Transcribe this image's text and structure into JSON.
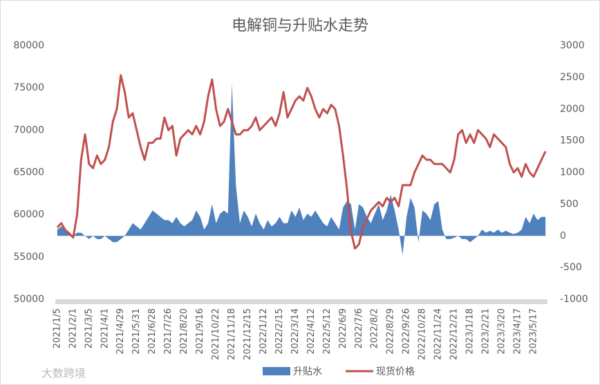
{
  "chart_data": {
    "type": "line",
    "title": "电解铜与升贴水走势",
    "watermark": "大数跨境",
    "categories": [
      "2021/1/5",
      null,
      null,
      null,
      "2021/2/1",
      null,
      null,
      null,
      "2021/3/5",
      null,
      null,
      null,
      "2021/4/1",
      null,
      null,
      null,
      "2021/4/29",
      null,
      null,
      null,
      "2021/5/31",
      null,
      null,
      null,
      "2021/6/28",
      null,
      null,
      null,
      "2021/7/26",
      null,
      null,
      null,
      "2021/8/20",
      null,
      null,
      null,
      "2021/9/16",
      null,
      null,
      null,
      "2021/10/22",
      null,
      null,
      null,
      "2021/11/18",
      null,
      null,
      null,
      "2021/12/15",
      null,
      null,
      null,
      "2022/1/12",
      null,
      null,
      null,
      "2022/2/15",
      null,
      null,
      null,
      "2022/3/14",
      null,
      null,
      null,
      "2022/4/12",
      null,
      null,
      null,
      "2022/5/12",
      null,
      null,
      null,
      "2022/6/9",
      null,
      null,
      null,
      "2022/7/6",
      null,
      null,
      null,
      "2022/8/2",
      null,
      null,
      null,
      "2022/8/29",
      null,
      null,
      null,
      "2022/9/26",
      null,
      null,
      null,
      "2022/10/28",
      null,
      null,
      null,
      "2022/11/24",
      null,
      null,
      null,
      "2022/12/21",
      null,
      null,
      null,
      "2023/1/18",
      null,
      null,
      null,
      "2023/2/21",
      null,
      null,
      null,
      "2023/3/20",
      null,
      null,
      null,
      "2023/4/17",
      null,
      null,
      null,
      "2023/5/17",
      null,
      null,
      null
    ],
    "series": [
      {
        "name": "升贴水",
        "type": "area",
        "axis": "y2",
        "color": "#4f81bd",
        "values": [
          100,
          150,
          100,
          50,
          0,
          50,
          50,
          0,
          -50,
          0,
          -50,
          -50,
          0,
          -50,
          -100,
          -100,
          -50,
          0,
          100,
          200,
          150,
          100,
          200,
          300,
          400,
          350,
          300,
          250,
          250,
          200,
          300,
          200,
          150,
          200,
          250,
          400,
          300,
          100,
          200,
          500,
          200,
          350,
          400,
          350,
          2400,
          800,
          200,
          400,
          300,
          150,
          350,
          200,
          100,
          250,
          150,
          200,
          300,
          200,
          200,
          400,
          300,
          450,
          250,
          350,
          300,
          400,
          300,
          200,
          150,
          300,
          200,
          100,
          450,
          550,
          500,
          100,
          500,
          450,
          300,
          200,
          350,
          500,
          250,
          400,
          650,
          400,
          100,
          -300,
          300,
          600,
          450,
          -100,
          400,
          350,
          250,
          500,
          550,
          100,
          -50,
          -50,
          -30,
          0,
          -50,
          -50,
          -100,
          -50,
          0,
          100,
          50,
          80,
          50,
          100,
          50,
          80,
          50,
          30,
          50,
          100,
          300,
          200,
          350,
          250,
          300,
          300
        ]
      },
      {
        "name": "现货价格",
        "type": "line",
        "color": "#c0504d",
        "values": [
          58500,
          59000,
          58200,
          57800,
          57300,
          60000,
          66500,
          69500,
          66000,
          65500,
          67000,
          66000,
          66500,
          68000,
          71000,
          72500,
          76500,
          74500,
          71500,
          72000,
          70000,
          68000,
          66500,
          68500,
          68500,
          69000,
          69000,
          71500,
          70000,
          70500,
          67000,
          69000,
          69500,
          70000,
          69500,
          70500,
          69500,
          71000,
          74000,
          76000,
          72500,
          70500,
          71000,
          72500,
          71000,
          69500,
          69500,
          70000,
          70000,
          70500,
          71500,
          70000,
          70500,
          71000,
          71500,
          70500,
          72000,
          74500,
          71500,
          72500,
          73500,
          74000,
          73500,
          75000,
          74000,
          72500,
          71500,
          72500,
          72000,
          73000,
          72500,
          70500,
          67000,
          63000,
          58000,
          56000,
          56500,
          58500,
          59500,
          60500,
          61000,
          61500,
          61000,
          62000,
          61500,
          62000,
          61000,
          63500,
          63500,
          63500,
          65000,
          66000,
          67000,
          66500,
          66500,
          66000,
          66000,
          66000,
          65500,
          65000,
          66500,
          69500,
          70000,
          68500,
          69500,
          68500,
          70000,
          69500,
          69000,
          68000,
          69500,
          69000,
          68500,
          68000,
          66000,
          65000,
          65500,
          64500,
          66000,
          65000,
          64500,
          65500,
          66500,
          67500
        ]
      }
    ],
    "ylim": [
      50000,
      80000
    ],
    "yticks": [
      50000,
      55000,
      60000,
      65000,
      70000,
      75000,
      80000
    ],
    "y2lim": [
      -1000,
      3000
    ],
    "y2ticks": [
      -1000,
      -500,
      0,
      500,
      1000,
      1500,
      2000,
      2500,
      3000
    ],
    "legend": "bottom"
  }
}
